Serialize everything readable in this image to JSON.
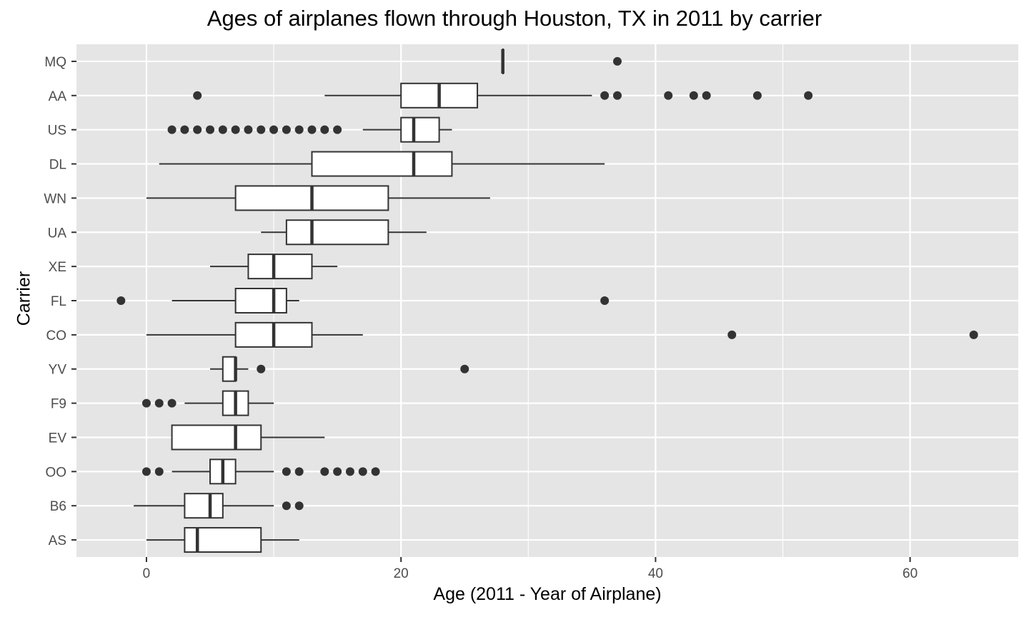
{
  "chart_data": {
    "type": "boxplot",
    "orientation": "horizontal",
    "title": "Ages of airplanes flown through Houston, TX in 2011 by carrier",
    "xlabel": "Age (2011 - Year of Airplane)",
    "ylabel": "Carrier",
    "xlim": [
      -5.5,
      68.5
    ],
    "x_ticks": [
      0,
      20,
      40,
      60
    ],
    "x_tick_labels": [
      "0",
      "20",
      "40",
      "60"
    ],
    "grid": true,
    "background_color": "#e5e5e5",
    "grid_color": "#ffffff",
    "box_fill": "#ffffff",
    "box_stroke": "#333333",
    "categories": [
      "MQ",
      "AA",
      "US",
      "DL",
      "WN",
      "UA",
      "XE",
      "FL",
      "CO",
      "YV",
      "F9",
      "EV",
      "OO",
      "B6",
      "AS"
    ],
    "boxes": [
      {
        "category": "MQ",
        "q1": 28,
        "median": 28,
        "q3": 28,
        "whisker_low": 28,
        "whisker_high": 28,
        "outliers": [
          37
        ]
      },
      {
        "category": "AA",
        "q1": 20,
        "median": 23,
        "q3": 26,
        "whisker_low": 14,
        "whisker_high": 35,
        "outliers": [
          4,
          36,
          37,
          41,
          43,
          44,
          48,
          52
        ]
      },
      {
        "category": "US",
        "q1": 20,
        "median": 21,
        "q3": 23,
        "whisker_low": 17,
        "whisker_high": 24,
        "outliers": [
          2,
          3,
          4,
          5,
          6,
          7,
          8,
          9,
          10,
          11,
          12,
          13,
          14,
          15
        ]
      },
      {
        "category": "DL",
        "q1": 13,
        "median": 21,
        "q3": 24,
        "whisker_low": 1,
        "whisker_high": 36,
        "outliers": []
      },
      {
        "category": "WN",
        "q1": 7,
        "median": 13,
        "q3": 19,
        "whisker_low": 0,
        "whisker_high": 27,
        "outliers": []
      },
      {
        "category": "UA",
        "q1": 11,
        "median": 13,
        "q3": 19,
        "whisker_low": 9,
        "whisker_high": 22,
        "outliers": []
      },
      {
        "category": "XE",
        "q1": 8,
        "median": 10,
        "q3": 13,
        "whisker_low": 5,
        "whisker_high": 15,
        "outliers": []
      },
      {
        "category": "FL",
        "q1": 7,
        "median": 10,
        "q3": 11,
        "whisker_low": 2,
        "whisker_high": 12,
        "outliers": [
          -2,
          36
        ]
      },
      {
        "category": "CO",
        "q1": 7,
        "median": 10,
        "q3": 13,
        "whisker_low": 0,
        "whisker_high": 17,
        "outliers": [
          46,
          65
        ]
      },
      {
        "category": "YV",
        "q1": 6,
        "median": 7,
        "q3": 7,
        "whisker_low": 5,
        "whisker_high": 8,
        "outliers": [
          9,
          25
        ]
      },
      {
        "category": "F9",
        "q1": 6,
        "median": 7,
        "q3": 8,
        "whisker_low": 3,
        "whisker_high": 10,
        "outliers": [
          0,
          1,
          2
        ]
      },
      {
        "category": "EV",
        "q1": 2,
        "median": 7,
        "q3": 9,
        "whisker_low": 2,
        "whisker_high": 14,
        "outliers": []
      },
      {
        "category": "OO",
        "q1": 5,
        "median": 6,
        "q3": 7,
        "whisker_low": 2,
        "whisker_high": 10,
        "outliers": [
          0,
          1,
          11,
          12,
          14,
          15,
          16,
          17,
          18
        ]
      },
      {
        "category": "B6",
        "q1": 3,
        "median": 5,
        "q3": 6,
        "whisker_low": -1,
        "whisker_high": 10,
        "outliers": [
          11,
          12
        ]
      },
      {
        "category": "AS",
        "q1": 3,
        "median": 4,
        "q3": 9,
        "whisker_low": 0,
        "whisker_high": 12,
        "outliers": []
      }
    ]
  }
}
